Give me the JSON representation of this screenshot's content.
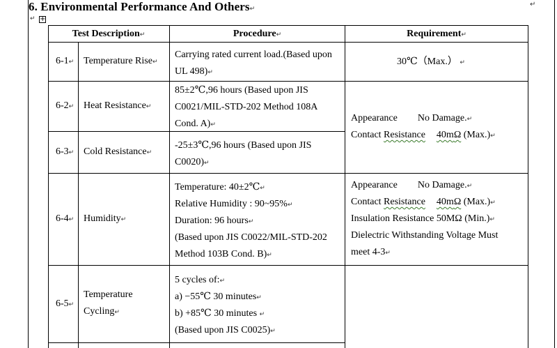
{
  "heading": "6. Environmental Performance And Others",
  "para_mark": "↵",
  "table": {
    "headers": {
      "test_description": "Test Description",
      "procedure": "Procedure",
      "requirement": "Requirement"
    },
    "rows": [
      {
        "id": "6-1",
        "name": "Temperature Rise",
        "procedure": [
          "Carrying rated current load.(Based upon",
          "UL 498)"
        ],
        "requirement": [
          "30℃（Max.）"
        ]
      },
      {
        "id": "6-2",
        "name": "Heat Resistance",
        "procedure": [
          "85±2℃,96 hours (Based upon JIS",
          "C0021/MIL-STD-202 Method 108A",
          "Cond. A)"
        ]
      },
      {
        "id": "6-3",
        "name": "Cold Resistance",
        "procedure": [
          "-25±3℃,96 hours (Based upon JIS",
          "C0020)"
        ]
      },
      {
        "id": "6-4",
        "name": "Humidity",
        "procedure": [
          "Temperature:    40±2℃",
          "Relative Humidity : 90~95%",
          "Duration:    96 hours",
          "(Based upon JIS C0022/MIL-STD-202",
          "Method 103B Cond. B)"
        ],
        "requirement": {
          "appearance_label": "Appearance",
          "appearance_value": "No Damage.",
          "contact_label_a": "Contact ",
          "contact_label_b": "Resistance",
          "contact_value_a": "40m",
          "contact_value_b": "Ω",
          "contact_value_c": " (Max.)",
          "insulation": "Insulation Resistance 50MΩ (Min.)",
          "dielectric_1": "Dielectric Withstanding Voltage Must",
          "dielectric_2": "meet 4-3"
        }
      },
      {
        "id": "6-5",
        "name_1": "Temperature",
        "name_2": "Cycling",
        "procedure": [
          "5 cycles of:",
          "a)  −55℃    30 minutes",
          "b)  +85℃    30 minutes ",
          "(Based upon JIS C0025)"
        ]
      }
    ],
    "merged_requirement_62_63": {
      "appearance_label": "Appearance",
      "appearance_value": "No Damage.",
      "contact_label_a": "Contact ",
      "contact_label_b": "Resistance",
      "contact_value_a": "40m",
      "contact_value_b": "Ω",
      "contact_value_c": " (Max.)"
    }
  }
}
